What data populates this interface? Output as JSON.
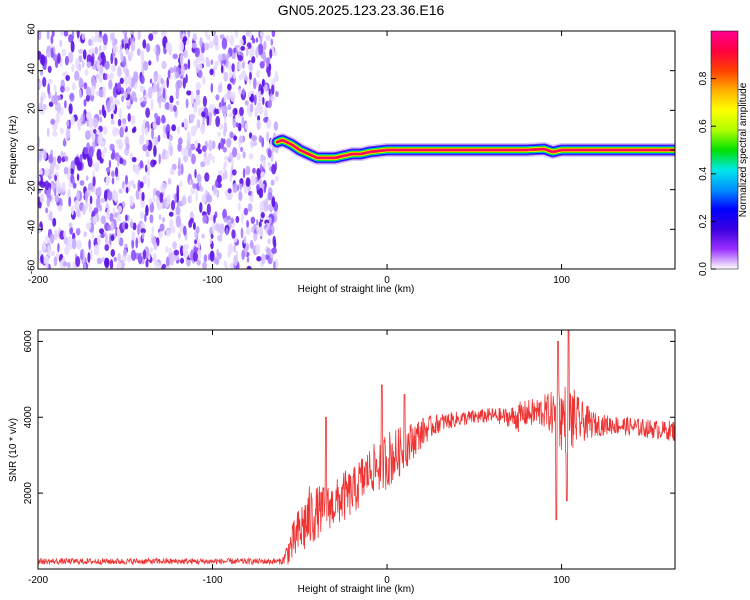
{
  "title": "GN05.2025.123.23.36.E16",
  "chart_data": [
    {
      "type": "heatmap",
      "xlabel": "Height of straight line (km)",
      "ylabel": "Frequency (Hz)",
      "xlim": [
        -200,
        165
      ],
      "ylim": [
        -60,
        60
      ],
      "xticks": [
        -200,
        -100,
        0,
        100
      ],
      "yticks": [
        -60,
        -40,
        -20,
        0,
        20,
        40,
        60
      ],
      "noise_region": {
        "x": [
          -200,
          -63
        ],
        "y": [
          -60,
          60
        ]
      },
      "ridge": {
        "x": [
          -63,
          -60,
          -55,
          -50,
          -45,
          -40,
          -35,
          -30,
          -25,
          -20,
          -15,
          -10,
          -5,
          0,
          5,
          20,
          40,
          60,
          80,
          90,
          95,
          100,
          120,
          140,
          165
        ],
        "y": [
          4,
          5,
          3,
          0,
          -2,
          -4,
          -4,
          -4,
          -3,
          -2,
          -2,
          -1,
          -0.5,
          0,
          0,
          0,
          0,
          0,
          0,
          0.5,
          -1,
          0,
          0,
          0,
          0
        ]
      },
      "colorbar": {
        "label": "Normalized spectral amplitude",
        "range": [
          0,
          1
        ],
        "ticks": [
          "0.0",
          "0.2",
          "0.4",
          "0.6",
          "0.8"
        ],
        "tick_values": [
          0,
          0.2,
          0.4,
          0.6,
          0.8
        ],
        "colors": [
          "#ffffff",
          "#9b30ff",
          "#3a00e0",
          "#0000ff",
          "#0090ff",
          "#00e8e8",
          "#00e000",
          "#b0ff00",
          "#ffff00",
          "#ffb000",
          "#ff4000",
          "#ff0040",
          "#ff0090"
        ]
      }
    },
    {
      "type": "line",
      "xlabel": "Height of straight line (km)",
      "ylabel": "SNR (10 * v/v)",
      "xlim": [
        -200,
        165
      ],
      "ylim": [
        0,
        6300
      ],
      "xticks": [
        -200,
        -100,
        0,
        100
      ],
      "yticks": [
        2000,
        4000,
        6000
      ],
      "color": "#ee3333",
      "envelope": {
        "x": [
          -200,
          -60,
          -55,
          -50,
          -45,
          -40,
          -35,
          -30,
          -25,
          -20,
          -15,
          -10,
          -5,
          0,
          5,
          10,
          15,
          20,
          25,
          30,
          40,
          50,
          60,
          70,
          75,
          80,
          90,
          95,
          100,
          105,
          110,
          120,
          130,
          140,
          150,
          160,
          165
        ],
        "mean": [
          200,
          200,
          600,
          1000,
          1300,
          1500,
          1600,
          1700,
          1900,
          2000,
          2300,
          2600,
          2700,
          2900,
          3000,
          3200,
          3400,
          3600,
          3750,
          3850,
          3950,
          4000,
          4050,
          4000,
          4000,
          4100,
          4150,
          4100,
          4000,
          3950,
          3900,
          3800,
          3800,
          3750,
          3700,
          3650,
          3650
        ],
        "amp": [
          80,
          80,
          500,
          700,
          900,
          700,
          600,
          600,
          700,
          600,
          700,
          600,
          700,
          800,
          700,
          600,
          500,
          400,
          300,
          250,
          200,
          200,
          200,
          250,
          400,
          350,
          450,
          600,
          900,
          1000,
          600,
          300,
          250,
          250,
          250,
          250,
          300
        ]
      },
      "peaks": [
        {
          "x": -35,
          "y": 4000
        },
        {
          "x": -3,
          "y": 4850
        },
        {
          "x": 10,
          "y": 4600
        },
        {
          "x": 98,
          "y": 6000
        },
        {
          "x": 104,
          "y": 6300
        },
        {
          "x": 97,
          "y": 1300
        },
        {
          "x": 103,
          "y": 1800
        }
      ]
    }
  ]
}
